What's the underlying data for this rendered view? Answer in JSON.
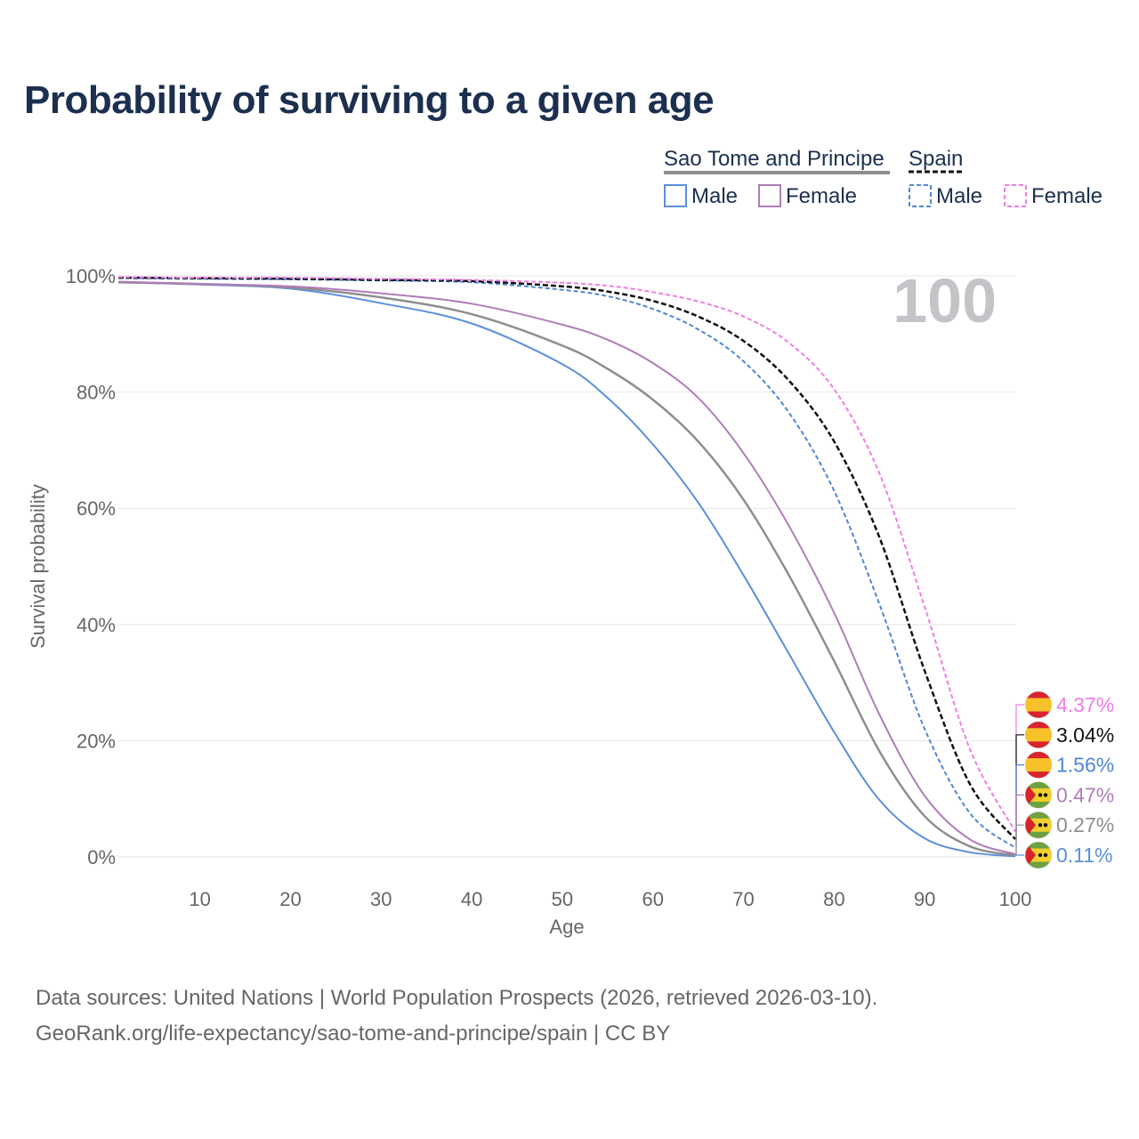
{
  "title": "Probability of surviving to a given age",
  "sources": {
    "line1": "Data sources: United Nations | World Population Prospects (2026, retrieved 2026-03-10).",
    "line2": "GeoRank.org/life-expectancy/sao-tome-and-principe/spain | CC BY"
  },
  "legend": {
    "group1": "Sao Tome and Principe",
    "group2": "Spain",
    "male": "Male",
    "female": "Female"
  },
  "overlay_age": "100",
  "colors": {
    "male": "#5b8fdc",
    "female": "#b07cba",
    "stp_both": "#8e8e8e",
    "spain_male": "#4f86d4",
    "spain_female": "#f07de4",
    "spain_both": "#111111",
    "title": "#1c2f4f",
    "spain_flag_red": "#d9232f",
    "spain_flag_yellow": "#f7c12a",
    "stp_flag_green": "#6da040",
    "stp_flag_yellow": "#f2cf2e",
    "stp_flag_red": "#d8232a"
  },
  "chart_data": {
    "type": "line",
    "title": "Probability of surviving to a given age",
    "xlabel": "Age",
    "ylabel": "Survival probability",
    "xlim": [
      1,
      100
    ],
    "ylim": [
      0,
      100
    ],
    "x_ticks": [
      10,
      20,
      30,
      40,
      50,
      60,
      70,
      80,
      90,
      100
    ],
    "y_ticks": [
      0,
      20,
      40,
      60,
      80,
      100
    ],
    "y_tick_labels": [
      "0%",
      "20%",
      "40%",
      "60%",
      "80%",
      "100%"
    ],
    "x": [
      1,
      10,
      20,
      30,
      40,
      50,
      55,
      60,
      65,
      70,
      75,
      80,
      85,
      90,
      95,
      100
    ],
    "series": [
      {
        "name": "Sao Tome and Principe Male",
        "country": "Sao Tome and Principe",
        "sex": "male",
        "dash": false,
        "color": "#5b8fdc",
        "end_label": "0.11%",
        "values": [
          98.9,
          98.5,
          97.8,
          95.3,
          91.8,
          84.8,
          79.0,
          71.0,
          61.0,
          48.5,
          35.0,
          21.5,
          9.8,
          3.2,
          0.8,
          0.11
        ]
      },
      {
        "name": "Sao Tome and Principe Both",
        "country": "Sao Tome and Principe",
        "sex": "both",
        "dash": false,
        "color": "#8e8e8e",
        "end_label": "0.27%",
        "values": [
          98.9,
          98.6,
          98.0,
          96.3,
          93.4,
          88.0,
          84.0,
          78.7,
          71.5,
          61.5,
          48.5,
          33.7,
          18.2,
          7.0,
          1.8,
          0.27
        ]
      },
      {
        "name": "Sao Tome and Principe Female",
        "country": "Sao Tome and Principe",
        "sex": "female",
        "dash": false,
        "color": "#b07cba",
        "end_label": "0.47%",
        "values": [
          99.0,
          98.6,
          98.2,
          97.0,
          95.2,
          91.6,
          89.0,
          85.0,
          79.0,
          69.5,
          57.0,
          42.0,
          24.5,
          10.5,
          3.0,
          0.47
        ]
      },
      {
        "name": "Spain Male",
        "country": "Spain",
        "sex": "male",
        "dash": true,
        "color": "#4f86d4",
        "end_label": "1.56%",
        "values": [
          99.6,
          99.5,
          99.4,
          99.2,
          98.9,
          97.6,
          96.5,
          94.3,
          90.8,
          85.3,
          76.5,
          63.0,
          43.5,
          22.0,
          7.5,
          1.56
        ]
      },
      {
        "name": "Spain Both",
        "country": "Spain",
        "sex": "both",
        "dash": true,
        "color": "#111111",
        "end_label": "3.04%",
        "values": [
          99.7,
          99.6,
          99.5,
          99.3,
          99.1,
          98.2,
          97.3,
          95.7,
          93.0,
          88.8,
          82.0,
          71.5,
          55.0,
          32.0,
          12.5,
          3.04
        ]
      },
      {
        "name": "Spain Female",
        "country": "Spain",
        "sex": "female",
        "dash": true,
        "color": "#f07de4",
        "end_label": "4.37%",
        "values": [
          99.8,
          99.7,
          99.7,
          99.5,
          99.3,
          98.8,
          98.3,
          97.2,
          95.6,
          93.0,
          88.5,
          80.5,
          66.0,
          43.0,
          18.5,
          4.37
        ]
      }
    ]
  }
}
